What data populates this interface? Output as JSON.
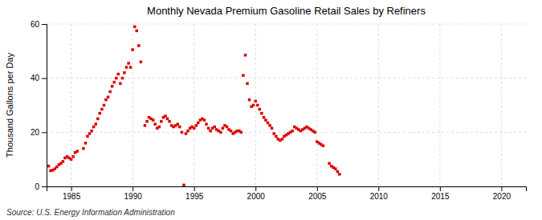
{
  "chart_data": {
    "type": "scatter",
    "title": "Monthly Nevada Premium Gasoline Retail Sales by Refiners",
    "ylabel": "Thousand Gallons per Day",
    "source": "Source: U.S. Energy Information Administration",
    "color": "#dd0000",
    "marker": "square",
    "grid": true,
    "xlim": [
      1983.0,
      2022.0
    ],
    "ylim": [
      0,
      60
    ],
    "xticks": [
      1985,
      1990,
      1995,
      2000,
      2005,
      2010,
      2015,
      2020
    ],
    "yticks": [
      0,
      20,
      40,
      60
    ],
    "x": [
      1983.17,
      1983.33,
      1983.5,
      1983.67,
      1983.83,
      1984.0,
      1984.17,
      1984.33,
      1984.5,
      1984.67,
      1984.83,
      1985.0,
      1985.17,
      1985.33,
      1985.5,
      1986.0,
      1986.17,
      1986.33,
      1986.5,
      1986.67,
      1986.83,
      1987.0,
      1987.17,
      1987.33,
      1987.5,
      1987.67,
      1987.83,
      1988.0,
      1988.17,
      1988.33,
      1988.5,
      1988.67,
      1988.83,
      1989.0,
      1989.17,
      1989.33,
      1989.5,
      1989.67,
      1989.83,
      1990.0,
      1990.17,
      1990.33,
      1990.5,
      1990.67,
      1991.0,
      1991.17,
      1991.33,
      1991.5,
      1991.67,
      1991.83,
      1992.0,
      1992.17,
      1992.33,
      1992.5,
      1992.67,
      1992.83,
      1993.0,
      1993.17,
      1993.33,
      1993.5,
      1993.67,
      1993.83,
      1994.0,
      1994.17,
      1994.33,
      1994.5,
      1994.67,
      1994.83,
      1995.0,
      1995.17,
      1995.33,
      1995.5,
      1995.67,
      1995.83,
      1996.0,
      1996.17,
      1996.33,
      1996.5,
      1996.67,
      1996.83,
      1997.0,
      1997.17,
      1997.33,
      1997.5,
      1997.67,
      1997.83,
      1998.0,
      1998.17,
      1998.33,
      1998.5,
      1998.67,
      1998.83,
      1999.0,
      1999.17,
      1999.33,
      1999.5,
      1999.67,
      1999.83,
      2000.0,
      2000.17,
      2000.33,
      2000.5,
      2000.67,
      2000.83,
      2001.0,
      2001.17,
      2001.33,
      2001.5,
      2001.67,
      2001.83,
      2002.0,
      2002.17,
      2002.33,
      2002.5,
      2002.67,
      2002.83,
      2003.0,
      2003.17,
      2003.33,
      2003.5,
      2003.67,
      2003.83,
      2004.0,
      2004.17,
      2004.33,
      2004.5,
      2004.67,
      2004.83,
      2005.0,
      2005.17,
      2005.33,
      2005.5,
      2006.0,
      2006.17,
      2006.33,
      2006.5,
      2006.67,
      2006.83
    ],
    "values": [
      7.5,
      5.8,
      6.0,
      6.5,
      7.2,
      8.0,
      8.5,
      9.2,
      10.5,
      11.0,
      10.5,
      10.0,
      11.0,
      12.5,
      13.0,
      14.0,
      16.0,
      18.5,
      19.5,
      20.5,
      22.0,
      23.0,
      25.0,
      27.0,
      28.5,
      30.0,
      32.0,
      33.0,
      35.0,
      37.0,
      38.5,
      40.0,
      41.5,
      38.0,
      40.0,
      42.0,
      44.0,
      45.5,
      44.0,
      50.5,
      59.0,
      57.5,
      52.0,
      46.0,
      22.5,
      24.0,
      25.5,
      25.0,
      24.5,
      23.0,
      21.5,
      22.0,
      24.0,
      25.5,
      26.0,
      25.0,
      24.0,
      22.5,
      22.0,
      22.5,
      23.0,
      22.0,
      20.0,
      0.5,
      19.5,
      20.5,
      21.5,
      22.0,
      21.5,
      22.5,
      23.5,
      24.5,
      25.0,
      24.5,
      23.0,
      21.5,
      20.5,
      21.5,
      22.0,
      21.0,
      20.5,
      20.0,
      21.5,
      22.5,
      22.0,
      21.0,
      20.5,
      19.5,
      20.0,
      20.5,
      20.5,
      20.0,
      41.0,
      48.5,
      38.0,
      32.0,
      29.5,
      30.0,
      31.5,
      30.0,
      28.5,
      27.0,
      25.5,
      24.5,
      23.5,
      22.5,
      21.5,
      19.5,
      18.5,
      17.5,
      17.0,
      17.5,
      18.5,
      19.0,
      19.5,
      20.0,
      20.5,
      22.0,
      21.5,
      21.0,
      20.5,
      21.0,
      21.5,
      22.0,
      21.5,
      21.0,
      20.5,
      20.0,
      16.5,
      16.0,
      15.5,
      15.0,
      8.5,
      7.5,
      7.0,
      6.5,
      5.5,
      4.5
    ]
  }
}
